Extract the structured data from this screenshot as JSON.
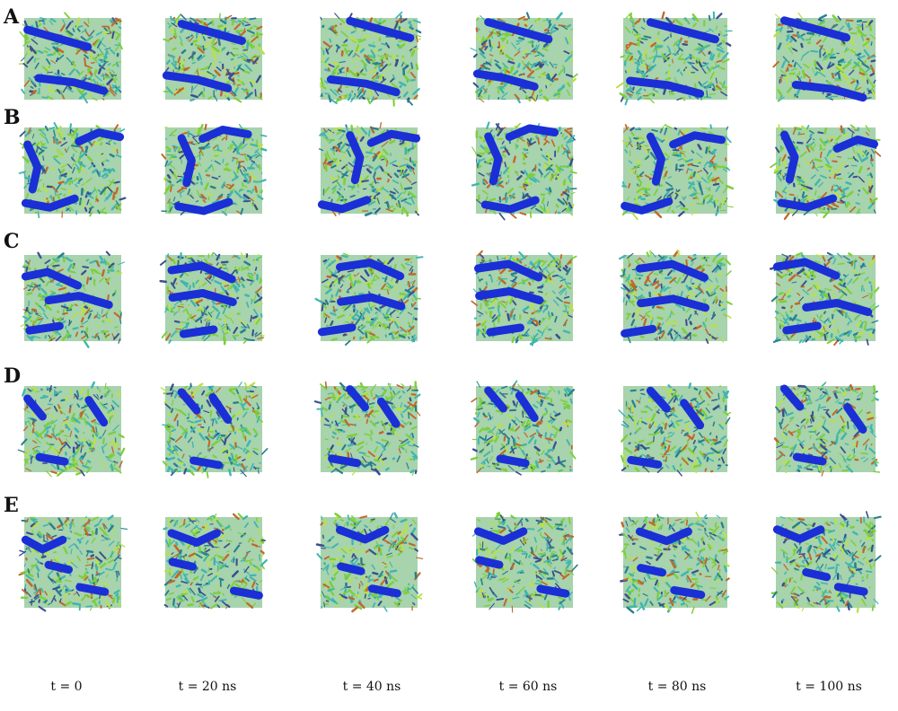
{
  "rows": [
    {
      "label": "A"
    },
    {
      "label": "B"
    },
    {
      "label": "C"
    },
    {
      "label": "D"
    },
    {
      "label": "E"
    }
  ],
  "time_labels": [
    "t = 0",
    "t = 20 ns",
    "t = 40 ns",
    "t = 60 ns",
    "t = 80 ns",
    "t = 100 ns"
  ],
  "colors": {
    "background": "#ffffff",
    "lipid_green": "#7ccf3a",
    "lipid_cyan": "#3fb6b0",
    "lipid_teal": "#2a7f8f",
    "lipid_lime": "#b9e04a",
    "lipid_orange": "#c2672a",
    "lipid_navy": "#3a4f8f",
    "peptide_blue": "#1a2fd6"
  }
}
